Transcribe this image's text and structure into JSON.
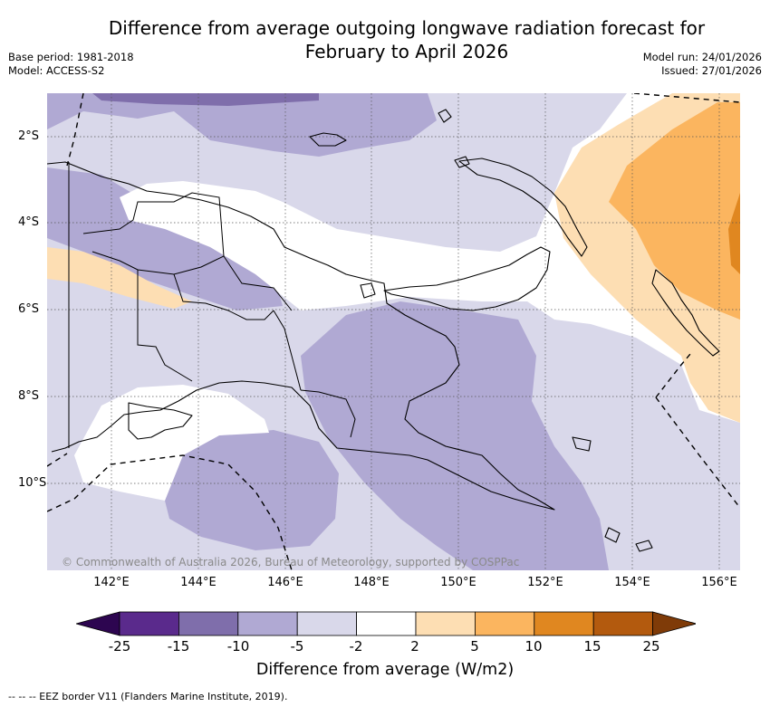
{
  "title": {
    "line1": "Difference from average outgoing longwave radiation forecast for",
    "line2": "February to April 2026"
  },
  "meta": {
    "base_period": "Base period: 1981-2018",
    "model": "Model: ACCESS-S2",
    "model_run": "Model run: 24/01/2026",
    "issued": "Issued: 27/01/2026"
  },
  "map": {
    "region": "Papua New Guinea",
    "lat_ticks": [
      "2°S",
      "4°S",
      "6°S",
      "8°S",
      "10°S"
    ],
    "lon_ticks": [
      "142°E",
      "144°E",
      "146°E",
      "148°E",
      "150°E",
      "152°E",
      "154°E",
      "156°E"
    ],
    "copyright": "© Commonwealth of Australia 2026, Bureau of Meteorology, supported by COSPPac"
  },
  "colorbar": {
    "labels": [
      "-25",
      "-15",
      "-10",
      "-5",
      "-2",
      "2",
      "5",
      "10",
      "15",
      "25"
    ],
    "colors": [
      "#5a2a8c",
      "#7f6eab",
      "#b0a9d3",
      "#d9d8ea",
      "#ffffff",
      "#fddeb3",
      "#fbb55f",
      "#e08720",
      "#b35a0e"
    ],
    "under_color": "#2d0550",
    "over_color": "#7f3b08",
    "title": "Difference from average (W/m2)"
  },
  "legend": {
    "eez": "--  --  -- EEZ border V11 (Flanders Marine Institute, 2019)."
  }
}
